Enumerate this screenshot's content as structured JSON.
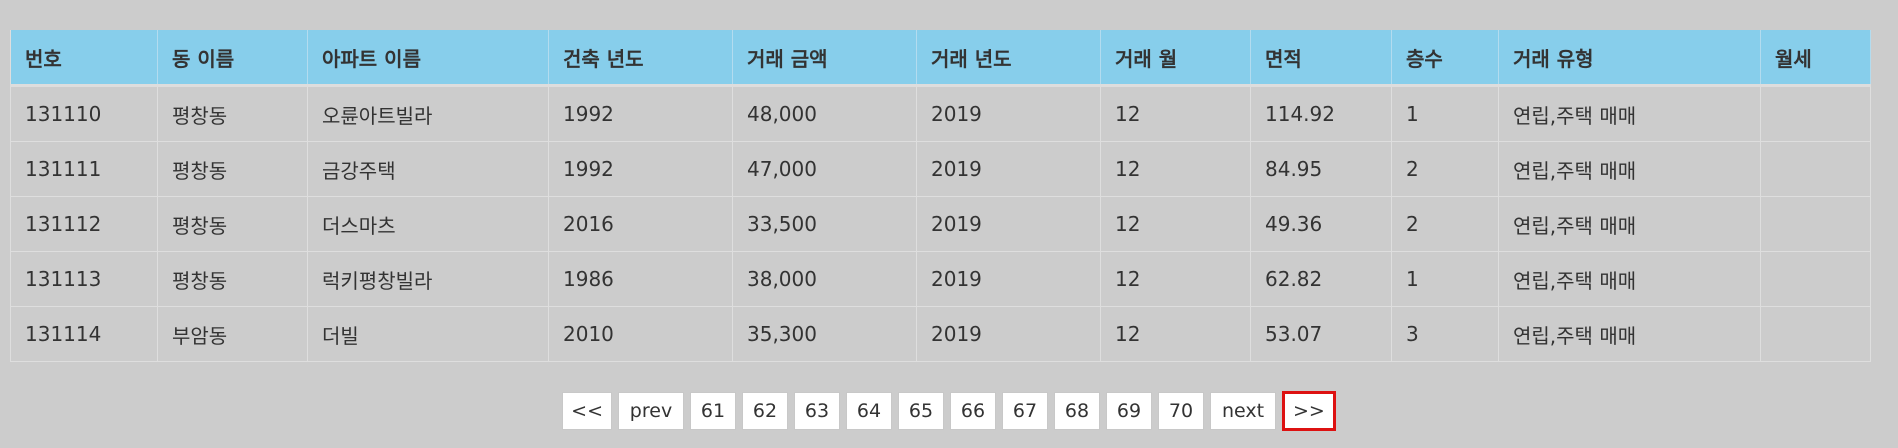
{
  "table": {
    "headers": [
      "번호",
      "동 이름",
      "아파트 이름",
      "건축 년도",
      "거래 금액",
      "거래 년도",
      "거래 월",
      "면적",
      "층수",
      "거래 유형",
      "월세"
    ],
    "rows": [
      [
        "131110",
        "평창동",
        "오륜아트빌라",
        "1992",
        "48,000",
        "2019",
        "12",
        "114.92",
        "1",
        "연립,주택 매매",
        ""
      ],
      [
        "131111",
        "평창동",
        "금강주택",
        "1992",
        "47,000",
        "2019",
        "12",
        "84.95",
        "2",
        "연립,주택 매매",
        ""
      ],
      [
        "131112",
        "평창동",
        "더스마츠",
        "2016",
        "33,500",
        "2019",
        "12",
        "49.36",
        "2",
        "연립,주택 매매",
        ""
      ],
      [
        "131113",
        "평창동",
        "럭키평창빌라",
        "1986",
        "38,000",
        "2019",
        "12",
        "62.82",
        "1",
        "연립,주택 매매",
        ""
      ],
      [
        "131114",
        "부암동",
        "더빌",
        "2010",
        "35,300",
        "2019",
        "12",
        "53.07",
        "3",
        "연립,주택 매매",
        ""
      ]
    ]
  },
  "pagination": {
    "first": "<<",
    "prev": "prev",
    "pages": [
      "61",
      "62",
      "63",
      "64",
      "65",
      "66",
      "67",
      "68",
      "69",
      "70"
    ],
    "next": "next",
    "last": ">>"
  },
  "colors": {
    "header_bg": "#87ceeb",
    "page_bg": "#cccccc",
    "highlight_border": "#dd1111"
  }
}
